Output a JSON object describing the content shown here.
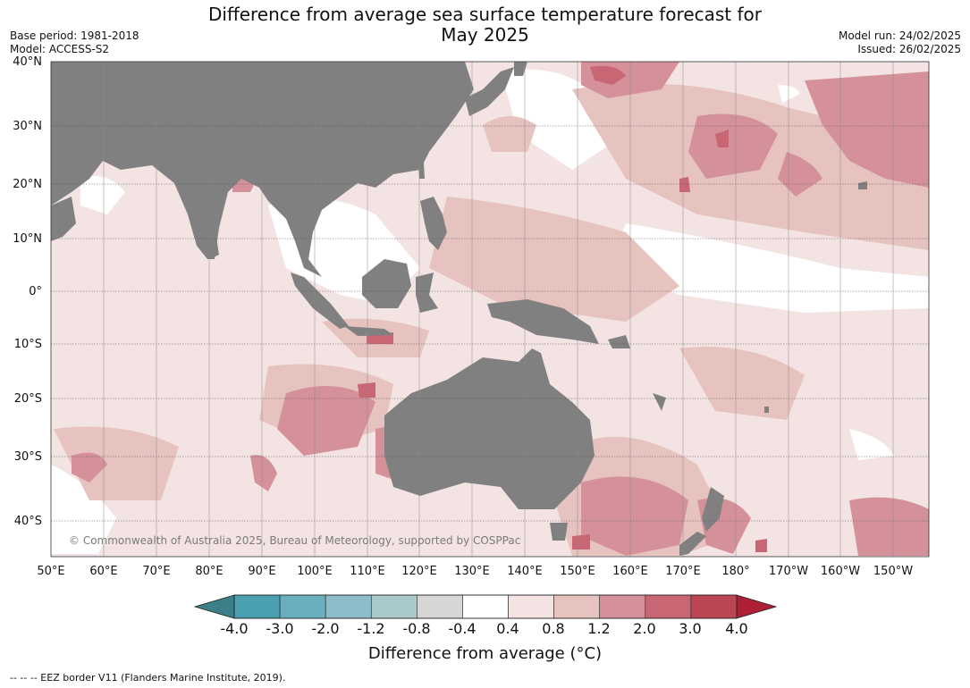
{
  "title": {
    "line1": "Difference from average sea surface temperature forecast for",
    "line2": "May 2025"
  },
  "meta_left": {
    "base_period": "Base period: 1981-2018",
    "model": "Model: ACCESS-S2"
  },
  "meta_right": {
    "model_run": "Model run: 24/02/2025",
    "issued": "Issued: 26/02/2025"
  },
  "copyright": "© Commonwealth of Australia 2025, Bureau of Meteorology, supported by COSPPac",
  "lat_labels": [
    "40°N",
    "30°N",
    "20°N",
    "10°N",
    "0°",
    "10°S",
    "20°S",
    "30°S",
    "40°S"
  ],
  "lon_labels": [
    "50°E",
    "60°E",
    "70°E",
    "80°E",
    "90°E",
    "100°E",
    "110°E",
    "120°E",
    "130°E",
    "140°E",
    "150°E",
    "160°E",
    "170°E",
    "180°",
    "170°W",
    "160°W",
    "150°W"
  ],
  "colorbar": {
    "label": "Difference from average ($^\\circ$C)",
    "label_display": "Difference from average (°C)",
    "ticks": [
      "-4.0",
      "-3.0",
      "-2.0",
      "-1.2",
      "-0.8",
      "-0.4",
      "0.4",
      "0.8",
      "1.2",
      "2.0",
      "3.0",
      "4.0"
    ],
    "colors": [
      "#4a9fb0",
      "#6aafbd",
      "#8cbdc8",
      "#aac9cd",
      "#d6d6d6",
      "#ffffff",
      "#f3e4e3",
      "#e6c3bf",
      "#d4919a",
      "#c96674",
      "#bd4655"
    ],
    "under_color": "#3d7f88",
    "over_color": "#ad1e37"
  },
  "legend_footer": "--  --  -- EEZ border V11 (Flanders Marine Institute, 2019).",
  "map": {
    "ocean_color": "#f3e4e3",
    "land_color": "#808080",
    "grid": true
  }
}
